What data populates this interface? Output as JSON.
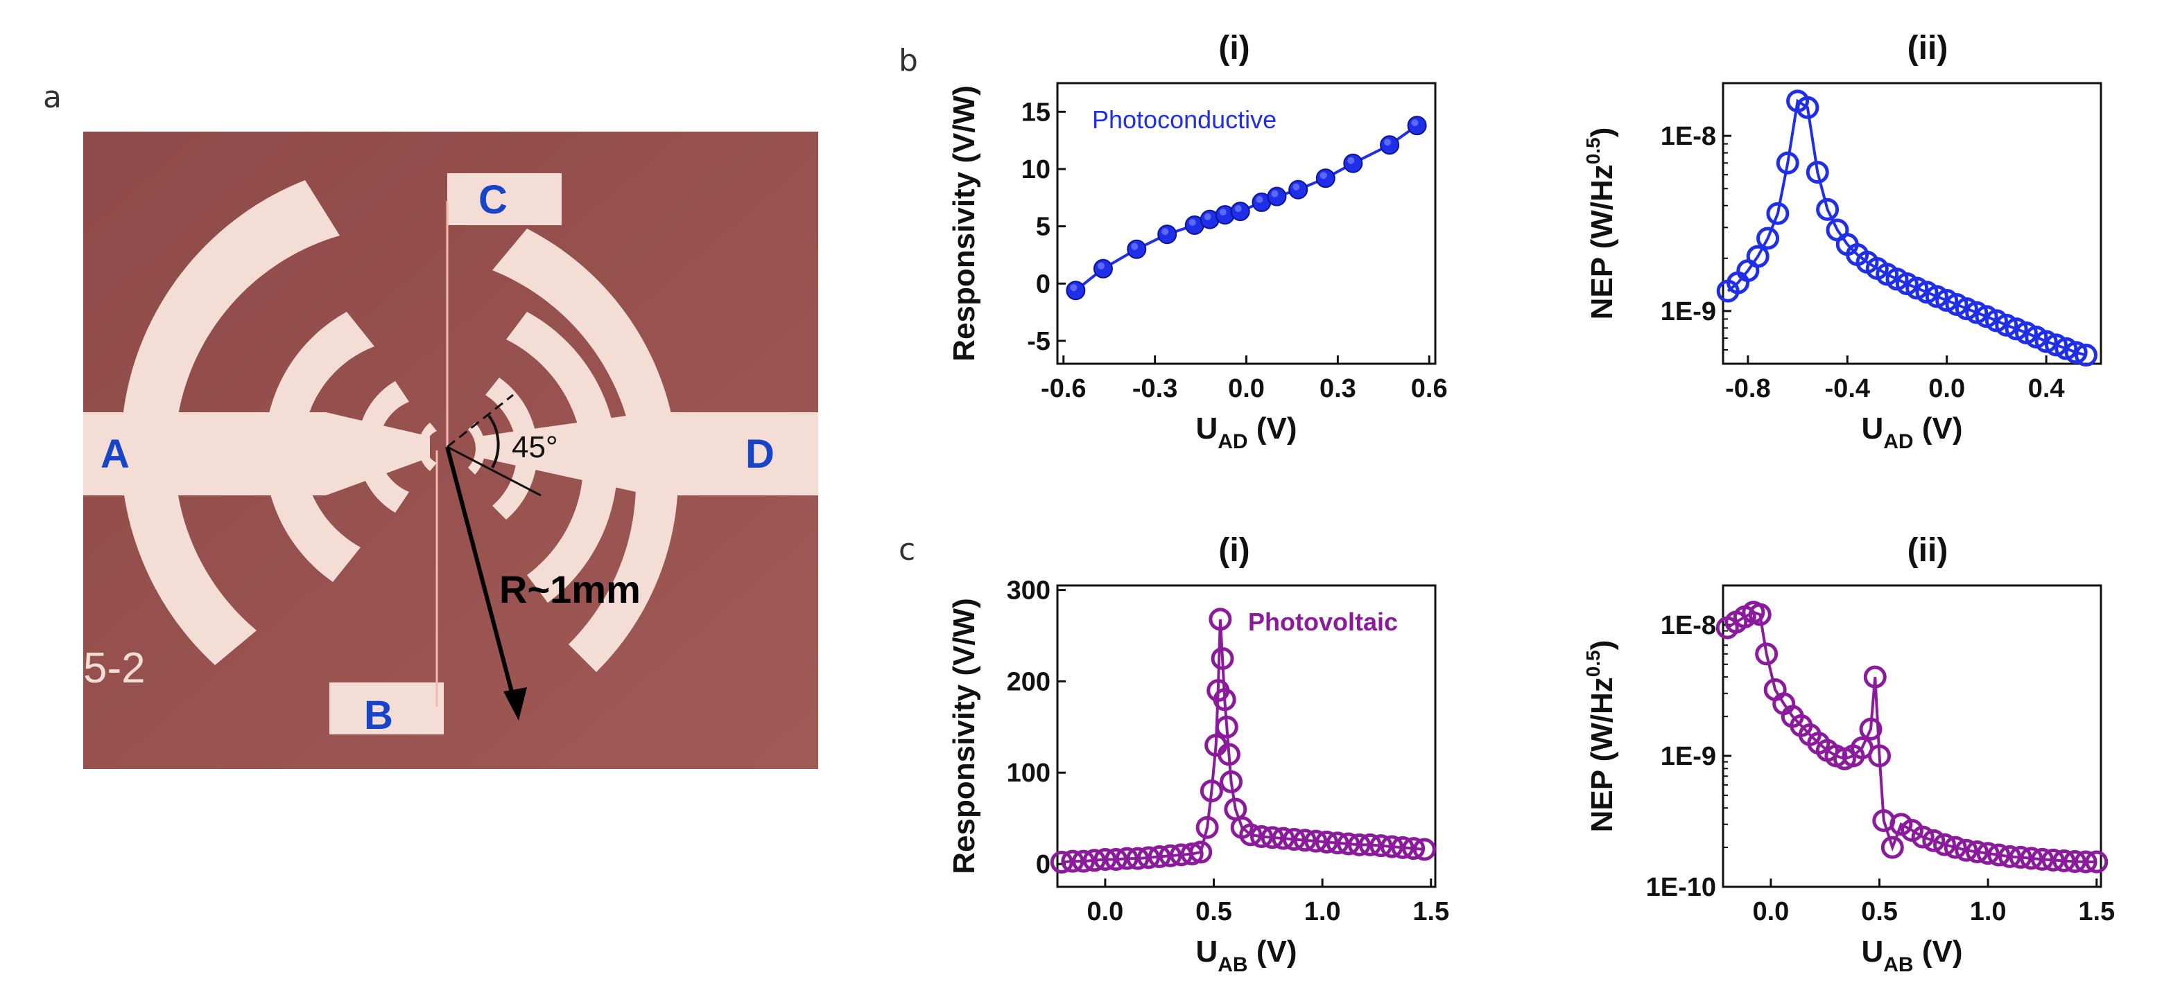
{
  "panel_labels": {
    "a": "a",
    "b": "b",
    "c": "c"
  },
  "micrograph": {
    "pad_labels": {
      "a": "A",
      "b": "B",
      "c": "C",
      "d": "D"
    },
    "angle_label": "45°",
    "radius_label": "R~1mm",
    "sample_label": "5-2",
    "colors": {
      "substrate": "#94504d",
      "metal": "#f3ddd5",
      "pad_text": "#1744c8"
    }
  },
  "chart_data": [
    {
      "id": "b-i",
      "type": "line",
      "title": "(i)",
      "ylabel": "Responsivity (V/W)",
      "xlabel_main": "U",
      "xlabel_sub": "AD",
      "xlabel_unit": " (V)",
      "xlim": [
        -0.62,
        0.62
      ],
      "ylim": [
        -7,
        17.5
      ],
      "yscale": "linear",
      "xticks": [
        -0.6,
        -0.3,
        0.0,
        0.3,
        0.6
      ],
      "xtick_labels": [
        "-0.6",
        "-0.3",
        "0.0",
        "0.3",
        "0.6"
      ],
      "yticks": [
        -5,
        0,
        5,
        10,
        15
      ],
      "ytick_labels": [
        "-5",
        "0",
        "5",
        "10",
        "15"
      ],
      "annotation": "Photoconductive",
      "color": "#1f2ee8",
      "marker": "filled-circle",
      "series": [
        {
          "name": "Photoconductive",
          "x": [
            -0.56,
            -0.47,
            -0.36,
            -0.26,
            -0.17,
            -0.12,
            -0.07,
            -0.02,
            0.05,
            0.1,
            0.17,
            0.26,
            0.35,
            0.47,
            0.56
          ],
          "y": [
            -0.6,
            1.3,
            3.0,
            4.3,
            5.1,
            5.6,
            6.0,
            6.3,
            7.1,
            7.6,
            8.2,
            9.2,
            10.5,
            12.1,
            13.8
          ]
        }
      ]
    },
    {
      "id": "b-ii",
      "type": "line",
      "title": "(ii)",
      "ylabel": "NEP (W/Hz",
      "ylabel_sup": "0.5",
      "ylabel_end": ")",
      "xlabel_main": "U",
      "xlabel_sub": "AD",
      "xlabel_unit": " (V)",
      "xlim": [
        -0.9,
        0.62
      ],
      "ylim": [
        5e-10,
        2e-08
      ],
      "yscale": "log",
      "xticks": [
        -0.8,
        -0.4,
        0.0,
        0.4
      ],
      "xtick_labels": [
        "-0.8",
        "-0.4",
        "0.0",
        "0.4"
      ],
      "yticks": [
        1e-09,
        1e-08
      ],
      "ytick_labels": [
        "1E-9",
        "1E-8"
      ],
      "color": "#1f2ee8",
      "marker": "open-circle",
      "series": [
        {
          "name": "NEP",
          "x": [
            -0.88,
            -0.84,
            -0.8,
            -0.76,
            -0.72,
            -0.68,
            -0.64,
            -0.6,
            -0.56,
            -0.52,
            -0.48,
            -0.44,
            -0.4,
            -0.36,
            -0.32,
            -0.28,
            -0.24,
            -0.2,
            -0.16,
            -0.12,
            -0.08,
            -0.04,
            0.0,
            0.04,
            0.08,
            0.12,
            0.16,
            0.2,
            0.24,
            0.28,
            0.32,
            0.36,
            0.4,
            0.44,
            0.48,
            0.52,
            0.56
          ],
          "y": [
            1.3e-09,
            1.45e-09,
            1.7e-09,
            2.05e-09,
            2.6e-09,
            3.6e-09,
            7e-09,
            1.58e-08,
            1.45e-08,
            6.2e-09,
            3.8e-09,
            2.9e-09,
            2.4e-09,
            2.1e-09,
            1.9e-09,
            1.75e-09,
            1.62e-09,
            1.52e-09,
            1.43e-09,
            1.35e-09,
            1.28e-09,
            1.21e-09,
            1.15e-09,
            1.09e-09,
            1.03e-09,
            9.8e-10,
            9.3e-10,
            8.8e-10,
            8.3e-10,
            7.9e-10,
            7.5e-10,
            7.1e-10,
            6.7e-10,
            6.4e-10,
            6.1e-10,
            5.8e-10,
            5.6e-10
          ]
        }
      ]
    },
    {
      "id": "c-i",
      "type": "line",
      "title": "(i)",
      "ylabel": "Responsivity (V/W)",
      "xlabel_main": "U",
      "xlabel_sub": "AB",
      "xlabel_unit": " (V)",
      "xlim": [
        -0.22,
        1.52
      ],
      "ylim": [
        -25,
        305
      ],
      "yscale": "linear",
      "xticks": [
        0.0,
        0.5,
        1.0,
        1.5
      ],
      "xtick_labels": [
        "0.0",
        "0.5",
        "1.0",
        "1.5"
      ],
      "yticks": [
        0,
        100,
        200,
        300
      ],
      "ytick_labels": [
        "0",
        "100",
        "200",
        "300"
      ],
      "annotation": "Photovoltaic",
      "color": "#8b1a9c",
      "marker": "open-circle",
      "series": [
        {
          "name": "Photovoltaic",
          "x": [
            -0.2,
            -0.15,
            -0.1,
            -0.05,
            0.0,
            0.05,
            0.1,
            0.15,
            0.2,
            0.25,
            0.3,
            0.35,
            0.4,
            0.44,
            0.47,
            0.49,
            0.51,
            0.52,
            0.53,
            0.54,
            0.55,
            0.56,
            0.57,
            0.58,
            0.6,
            0.63,
            0.67,
            0.72,
            0.77,
            0.82,
            0.87,
            0.92,
            0.97,
            1.02,
            1.07,
            1.12,
            1.17,
            1.22,
            1.27,
            1.32,
            1.37,
            1.42,
            1.47
          ],
          "y": [
            2,
            3,
            3,
            4,
            5,
            5,
            6,
            6,
            7,
            8,
            9,
            10,
            11,
            13,
            40,
            80,
            130,
            190,
            268,
            225,
            180,
            150,
            120,
            90,
            60,
            40,
            32,
            30,
            29,
            28,
            27,
            26,
            25,
            24,
            23,
            22,
            21,
            21,
            20,
            19,
            18,
            17,
            16
          ]
        }
      ]
    },
    {
      "id": "c-ii",
      "type": "line",
      "title": "(ii)",
      "ylabel": "NEP (W/Hz",
      "ylabel_sup": "0.5",
      "ylabel_end": ")",
      "xlabel_main": "U",
      "xlabel_sub": "AB",
      "xlabel_unit": " (V)",
      "xlim": [
        -0.22,
        1.52
      ],
      "ylim": [
        1e-10,
        2e-08
      ],
      "yscale": "log",
      "xticks": [
        0.0,
        0.5,
        1.0,
        1.5
      ],
      "xtick_labels": [
        "0.0",
        "0.5",
        "1.0",
        "1.5"
      ],
      "yticks": [
        1e-10,
        1e-09,
        1e-08
      ],
      "ytick_labels": [
        "1E-10",
        "1E-9",
        "1E-8"
      ],
      "color": "#8b1a9c",
      "marker": "open-circle",
      "series": [
        {
          "name": "NEP",
          "x": [
            -0.2,
            -0.16,
            -0.12,
            -0.08,
            -0.05,
            -0.02,
            0.02,
            0.06,
            0.1,
            0.14,
            0.18,
            0.22,
            0.26,
            0.3,
            0.34,
            0.38,
            0.42,
            0.46,
            0.48,
            0.5,
            0.52,
            0.56,
            0.6,
            0.65,
            0.7,
            0.75,
            0.8,
            0.85,
            0.9,
            0.95,
            1.0,
            1.05,
            1.1,
            1.15,
            1.2,
            1.25,
            1.3,
            1.35,
            1.4,
            1.45,
            1.5
          ],
          "y": [
            9.5e-09,
            1.05e-08,
            1.15e-08,
            1.25e-08,
            1.2e-08,
            6e-09,
            3.2e-09,
            2.5e-09,
            2e-09,
            1.7e-09,
            1.45e-09,
            1.25e-09,
            1.1e-09,
            1e-09,
            9.5e-10,
            1e-09,
            1.15e-09,
            1.6e-09,
            4e-09,
            1e-09,
            3.2e-10,
            2e-10,
            3e-10,
            2.7e-10,
            2.4e-10,
            2.25e-10,
            2.1e-10,
            2e-10,
            1.9e-10,
            1.85e-10,
            1.8e-10,
            1.75e-10,
            1.7e-10,
            1.68e-10,
            1.65e-10,
            1.62e-10,
            1.6e-10,
            1.58e-10,
            1.56e-10,
            1.55e-10,
            1.55e-10
          ]
        }
      ]
    }
  ]
}
